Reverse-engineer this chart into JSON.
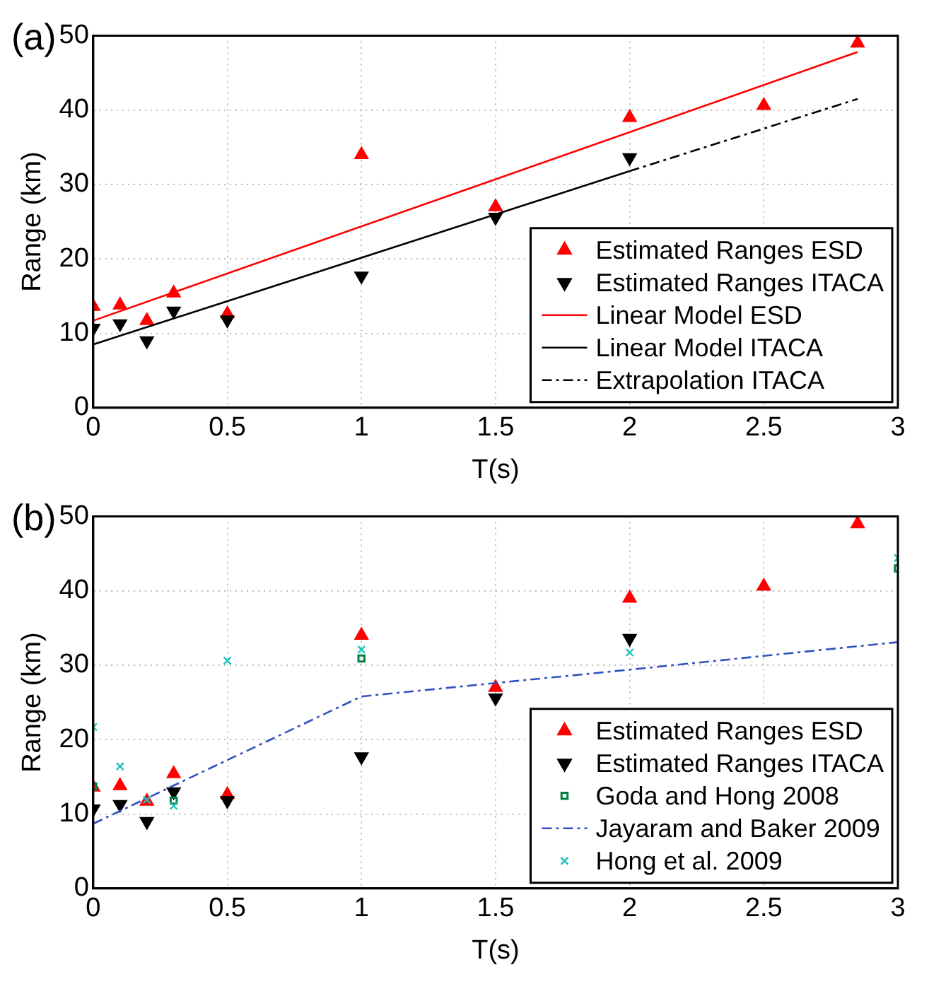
{
  "chart_data": [
    {
      "type": "scatter",
      "title": "(a)",
      "xlabel": "T(s)",
      "ylabel": "Range (km)",
      "xlim": [
        0,
        3
      ],
      "xticks": [
        0,
        0.5,
        1,
        1.5,
        2,
        2.5,
        3
      ],
      "ylim": [
        0,
        50
      ],
      "yticks": [
        0,
        10,
        20,
        30,
        40,
        50
      ],
      "grid": true,
      "legend": "bottom right",
      "series": [
        {
          "name": "Estimated Ranges ESD",
          "color": "#ff0000",
          "marker": "triangle",
          "x": [
            0,
            0.1,
            0.2,
            0.3,
            0.5,
            1,
            1.5,
            2,
            2.5,
            2.85
          ],
          "values": [
            13.6,
            13.8,
            11.7,
            15.4,
            12.6,
            34,
            27,
            39,
            40.6,
            49
          ]
        },
        {
          "name": "Estimated Ranges ITACA",
          "color": "#000000",
          "marker": "triangle_down",
          "x": [
            0,
            0.1,
            0.2,
            0.3,
            0.5,
            1,
            1.5,
            2
          ],
          "values": [
            10.7,
            11.3,
            9,
            13,
            11.8,
            17.7,
            25.6,
            33.6
          ]
        },
        {
          "name": "Linear Model ESD",
          "type": "line",
          "color": "#ff0000",
          "marker": "none",
          "line_style": "solid",
          "x": [
            0,
            2.85
          ],
          "values": [
            11.7,
            47.8
          ]
        },
        {
          "name": "Linear Model ITACA",
          "type": "line",
          "color": "#000000",
          "marker": "none",
          "line_style": "solid",
          "x": [
            0,
            2
          ],
          "values": [
            8.5,
            31.8
          ]
        },
        {
          "name": "Extrapolation ITACA",
          "type": "line",
          "color": "#000000",
          "marker": "none",
          "line_style": "dashed",
          "x": [
            2,
            2.85
          ],
          "values": [
            31.8,
            41.5
          ]
        }
      ]
    },
    {
      "type": "scatter",
      "title": "(b)",
      "xlabel": "T(s)",
      "ylabel": "Range (km)",
      "xlim": [
        0,
        3
      ],
      "xticks": [
        0,
        0.5,
        1,
        1.5,
        2,
        2.5,
        3
      ],
      "ylim": [
        0,
        50
      ],
      "yticks": [
        0,
        10,
        20,
        30,
        40,
        50
      ],
      "grid": true,
      "legend": "bottom right",
      "series": [
        {
          "name": "Estimated Ranges ESD",
          "color": "#ff0000",
          "marker": "triangle",
          "x": [
            0,
            0.1,
            0.2,
            0.3,
            0.5,
            1,
            1.5,
            2,
            2.5,
            2.85
          ],
          "values": [
            13.6,
            13.8,
            11.7,
            15.4,
            12.6,
            34,
            27,
            39,
            40.6,
            49
          ]
        },
        {
          "name": "Estimated Ranges ITACA",
          "color": "#000000",
          "marker": "triangle_down",
          "x": [
            0,
            0.1,
            0.2,
            0.3,
            0.5,
            1,
            1.5,
            2
          ],
          "values": [
            10.7,
            11.3,
            9,
            13,
            11.8,
            17.7,
            25.6,
            33.6
          ]
        },
        {
          "name": "Goda and Hong 2008",
          "color": "#008040",
          "marker": "square",
          "x": [
            0,
            0.3,
            1,
            3
          ],
          "values": [
            13.7,
            11.8,
            30.9,
            43
          ]
        },
        {
          "name": "Jayaram and Baker 2009",
          "type": "line",
          "color": "#3050c0",
          "marker": "none",
          "line_style": "dashed",
          "x": [
            0,
            1,
            1.5,
            2,
            3
          ],
          "values": [
            8.7,
            25.8,
            27.6,
            29.4,
            33.1
          ]
        },
        {
          "name": "Hong et al. 2009",
          "color": "#20c0c0",
          "marker": "cross",
          "x": [
            0,
            0.1,
            0.2,
            0.3,
            0.5,
            1,
            2,
            3
          ],
          "values": [
            21.7,
            16.4,
            11.9,
            11.1,
            30.6,
            32.1,
            31.7,
            44.4
          ]
        }
      ]
    }
  ]
}
